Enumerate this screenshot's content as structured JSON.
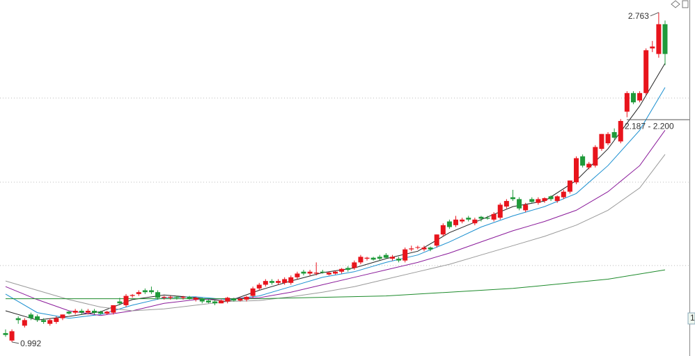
{
  "chart_data": {
    "type": "candlestick",
    "ylim": [
      0.917,
      2.83
    ],
    "gridlines": [
      1.403,
      1.851,
      2.303
    ],
    "up_color": "#e8141c",
    "down_color": "#1f9a3a",
    "open": [
      1.04,
      1.0,
      1.12,
      1.08,
      1.14,
      1.13,
      1.11,
      1.09,
      1.1,
      1.12,
      1.155,
      1.15,
      1.16,
      1.15,
      1.16,
      1.155,
      1.145,
      1.15,
      1.21,
      1.19,
      1.24,
      1.25,
      1.27,
      1.27,
      1.26,
      1.23,
      1.23,
      1.235,
      1.23,
      1.235,
      1.22,
      1.225,
      1.215,
      1.21,
      1.2,
      1.21,
      1.225,
      1.215,
      1.22,
      1.24,
      1.28,
      1.3,
      1.32,
      1.31,
      1.31,
      1.31,
      1.34,
      1.37,
      1.36,
      1.36,
      1.37,
      1.355,
      1.36,
      1.37,
      1.39,
      1.39,
      1.42,
      1.44,
      1.445,
      1.45,
      1.46,
      1.44,
      1.44,
      1.43,
      1.49,
      1.5,
      1.49,
      1.5,
      1.51,
      1.57,
      1.64,
      1.62,
      1.64,
      1.66,
      1.63,
      1.665,
      1.66,
      1.65,
      1.66,
      1.72,
      1.77,
      1.76,
      1.7,
      1.76,
      1.74,
      1.75,
      1.775,
      1.75,
      1.77,
      1.8,
      1.85,
      1.99,
      1.93,
      1.94,
      2.03,
      2.06,
      2.12,
      2.07,
      2.23,
      2.33,
      2.29,
      2.33,
      2.57,
      2.54,
      2.7
    ],
    "high": [
      1.06,
      1.06,
      1.13,
      1.12,
      1.15,
      1.14,
      1.12,
      1.12,
      1.13,
      1.14,
      1.16,
      1.17,
      1.17,
      1.17,
      1.17,
      1.16,
      1.16,
      1.19,
      1.23,
      1.25,
      1.25,
      1.27,
      1.28,
      1.29,
      1.27,
      1.24,
      1.24,
      1.24,
      1.24,
      1.24,
      1.235,
      1.23,
      1.22,
      1.215,
      1.22,
      1.235,
      1.23,
      1.23,
      1.24,
      1.29,
      1.31,
      1.33,
      1.33,
      1.33,
      1.34,
      1.35,
      1.37,
      1.38,
      1.38,
      1.42,
      1.38,
      1.37,
      1.375,
      1.39,
      1.4,
      1.43,
      1.46,
      1.45,
      1.45,
      1.46,
      1.47,
      1.46,
      1.45,
      1.5,
      1.51,
      1.51,
      1.51,
      1.505,
      1.57,
      1.63,
      1.65,
      1.67,
      1.66,
      1.67,
      1.66,
      1.67,
      1.67,
      1.69,
      1.74,
      1.76,
      1.81,
      1.77,
      1.74,
      1.77,
      1.77,
      1.77,
      1.78,
      1.78,
      1.81,
      1.86,
      1.99,
      2.0,
      1.96,
      2.05,
      2.11,
      2.12,
      2.14,
      2.19,
      2.34,
      2.34,
      2.34,
      2.57,
      2.61,
      2.763,
      2.72
    ],
    "low": [
      1.02,
      0.992,
      1.09,
      1.07,
      1.11,
      1.1,
      1.09,
      1.08,
      1.09,
      1.11,
      1.14,
      1.14,
      1.14,
      1.14,
      1.14,
      1.14,
      1.14,
      1.14,
      1.19,
      1.18,
      1.23,
      1.24,
      1.25,
      1.25,
      1.22,
      1.22,
      1.22,
      1.22,
      1.22,
      1.22,
      1.21,
      1.2,
      1.2,
      1.19,
      1.2,
      1.2,
      1.21,
      1.21,
      1.21,
      1.23,
      1.27,
      1.29,
      1.3,
      1.3,
      1.3,
      1.3,
      1.33,
      1.35,
      1.35,
      1.35,
      1.36,
      1.35,
      1.355,
      1.36,
      1.37,
      1.38,
      1.41,
      1.43,
      1.43,
      1.43,
      1.44,
      1.43,
      1.42,
      1.42,
      1.48,
      1.49,
      1.48,
      1.48,
      1.5,
      1.56,
      1.6,
      1.61,
      1.63,
      1.64,
      1.62,
      1.64,
      1.65,
      1.64,
      1.65,
      1.71,
      1.75,
      1.7,
      1.69,
      1.74,
      1.73,
      1.74,
      1.75,
      1.74,
      1.76,
      1.79,
      1.84,
      1.93,
      1.92,
      1.93,
      2.02,
      2.05,
      2.08,
      2.06,
      2.2,
      2.27,
      2.28,
      2.32,
      2.55,
      2.52,
      2.48
    ],
    "close": [
      1.03,
      1.05,
      1.11,
      1.11,
      1.12,
      1.11,
      1.1,
      1.11,
      1.12,
      1.14,
      1.145,
      1.16,
      1.15,
      1.16,
      1.15,
      1.145,
      1.155,
      1.19,
      1.2,
      1.24,
      1.245,
      1.26,
      1.26,
      1.26,
      1.23,
      1.235,
      1.235,
      1.23,
      1.235,
      1.225,
      1.23,
      1.21,
      1.205,
      1.2,
      1.215,
      1.23,
      1.215,
      1.225,
      1.235,
      1.28,
      1.3,
      1.32,
      1.31,
      1.32,
      1.33,
      1.34,
      1.36,
      1.36,
      1.37,
      1.365,
      1.365,
      1.365,
      1.37,
      1.385,
      1.38,
      1.42,
      1.45,
      1.445,
      1.435,
      1.44,
      1.445,
      1.45,
      1.43,
      1.49,
      1.495,
      1.502,
      1.5,
      1.49,
      1.57,
      1.62,
      1.61,
      1.65,
      1.65,
      1.65,
      1.65,
      1.655,
      1.655,
      1.68,
      1.73,
      1.75,
      1.76,
      1.71,
      1.73,
      1.745,
      1.76,
      1.765,
      1.76,
      1.775,
      1.8,
      1.86,
      1.98,
      1.94,
      1.95,
      2.04,
      2.11,
      2.11,
      2.09,
      2.18,
      2.33,
      2.28,
      2.33,
      2.56,
      2.58,
      2.7,
      2.54
    ],
    "ma_lines": [
      {
        "color": "#222222",
        "x": [
          0,
          5,
          10,
          15,
          20,
          25,
          30,
          35,
          40,
          45,
          50,
          55,
          60,
          65,
          70,
          75,
          80,
          85,
          90,
          95,
          100,
          104
        ],
        "values": [
          1.16,
          1.11,
          1.13,
          1.155,
          1.22,
          1.245,
          1.23,
          1.21,
          1.27,
          1.32,
          1.365,
          1.39,
          1.44,
          1.48,
          1.58,
          1.65,
          1.72,
          1.75,
          1.86,
          2.03,
          2.26,
          2.49
        ]
      },
      {
        "color": "#1a8fd0",
        "x": [
          0,
          5,
          10,
          15,
          20,
          25,
          30,
          35,
          40,
          45,
          50,
          55,
          60,
          65,
          70,
          75,
          80,
          85,
          90,
          95,
          100,
          104
        ],
        "values": [
          1.25,
          1.15,
          1.12,
          1.14,
          1.19,
          1.23,
          1.235,
          1.22,
          1.24,
          1.29,
          1.34,
          1.37,
          1.42,
          1.46,
          1.53,
          1.61,
          1.67,
          1.72,
          1.79,
          1.94,
          2.13,
          2.36
        ]
      },
      {
        "color": "#8a1a9a",
        "x": [
          0,
          5,
          10,
          15,
          20,
          25,
          30,
          35,
          40,
          45,
          50,
          55,
          60,
          65,
          70,
          75,
          80,
          85,
          90,
          95,
          100,
          104
        ],
        "values": [
          1.29,
          1.22,
          1.16,
          1.135,
          1.16,
          1.2,
          1.22,
          1.225,
          1.23,
          1.26,
          1.3,
          1.34,
          1.38,
          1.42,
          1.47,
          1.53,
          1.59,
          1.64,
          1.7,
          1.8,
          1.94,
          2.13
        ]
      },
      {
        "color": "#999999",
        "x": [
          0,
          5,
          10,
          15,
          20,
          25,
          30,
          35,
          40,
          45,
          50,
          55,
          60,
          65,
          70,
          75,
          80,
          85,
          90,
          95,
          100,
          104
        ],
        "values": [
          1.32,
          1.27,
          1.22,
          1.18,
          1.16,
          1.17,
          1.19,
          1.21,
          1.215,
          1.235,
          1.26,
          1.29,
          1.33,
          1.37,
          1.41,
          1.46,
          1.51,
          1.56,
          1.62,
          1.7,
          1.82,
          2.0
        ]
      },
      {
        "color": "#1c8a2a",
        "x": [
          0,
          40,
          60,
          80,
          95,
          104
        ],
        "values": [
          1.225,
          1.225,
          1.24,
          1.28,
          1.33,
          1.38
        ]
      }
    ],
    "high_marker": {
      "index": 103,
      "value": 2.763
    },
    "low_marker": {
      "index": 1,
      "value": 0.992
    },
    "price_line": {
      "value": 2.187,
      "label": "2.187 - 2.200"
    },
    "side_label": "1"
  }
}
